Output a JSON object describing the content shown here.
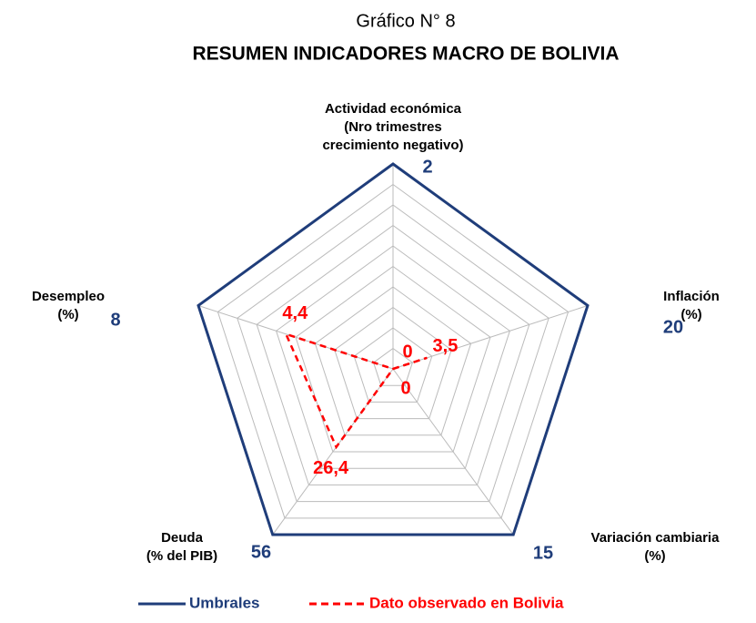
{
  "chart_data": {
    "type": "radar",
    "heading": "Gráfico N° 8",
    "title": "RESUMEN INDICADORES MACRO DE BOLIVIA",
    "categories": [
      [
        "Actividad económica",
        "(Nro trimestres",
        "crecimiento negativo)"
      ],
      [
        "Inflación",
        "(%)"
      ],
      [
        "Variación cambiaria",
        "(%)"
      ],
      [
        "Deuda",
        "(% del PIB)"
      ],
      [
        "Desempleo",
        "(%)"
      ]
    ],
    "series": [
      {
        "name": "Umbrales",
        "color": "#1f3d7a",
        "values": [
          2,
          20,
          15,
          56,
          8
        ]
      },
      {
        "name": "Dato observado en Bolivia",
        "color": "#ff0000",
        "values": [
          0,
          3.5,
          0,
          26.4,
          4.4
        ],
        "value_labels": [
          "0",
          "3,5",
          "0",
          "26,4",
          "4,4"
        ]
      }
    ],
    "legend": "bottom"
  }
}
